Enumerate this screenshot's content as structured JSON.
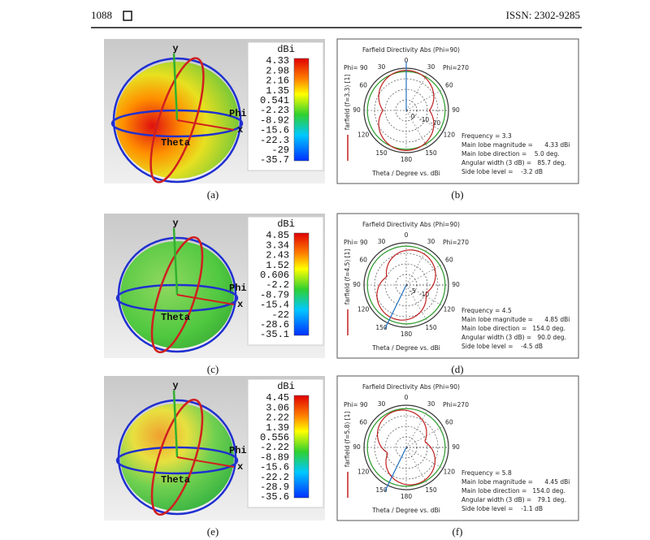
{
  "header": {
    "page": "1088",
    "issn": "ISSN: 2302-9285"
  },
  "rows": [
    {
      "pattern": {
        "axis_y": "y",
        "axis_phi": "Phi",
        "axis_x": "x",
        "axis_theta": "Theta",
        "unit": "dBi",
        "legend": [
          "4.33",
          "2.98",
          "2.16",
          "1.35",
          "0.541",
          "-2.23",
          "-8.92",
          "-15.6",
          "-22.3",
          "-29",
          "-35.7"
        ],
        "caption": "(a)"
      },
      "polar": {
        "title": "Farfield Directivity Abs (Phi=90)",
        "phi_left": "Phi= 90",
        "phi_right": "Phi=270",
        "angle_labels": [
          "0",
          "30",
          "30",
          "60",
          "60",
          "90",
          "90",
          "120",
          "120",
          "150",
          "150",
          "180"
        ],
        "radial_labels": [
          "0",
          "-10",
          "-20"
        ],
        "series_label": "farfield (f=3.3) [1]",
        "axis_label": "Theta / Degree vs. dBi",
        "info": [
          "Frequency = 3.3",
          "Main lobe magnitude =      4.33 dBi",
          "Main lobe direction =    5.0 deg.",
          "Angular width (3 dB) =   85.7 deg.",
          "Side lobe level =    -3.2 dB"
        ],
        "caption": "(b)"
      }
    },
    {
      "pattern": {
        "axis_y": "y",
        "axis_phi": "Phi",
        "axis_x": "x",
        "axis_theta": "Theta",
        "unit": "dBi",
        "legend": [
          "4.85",
          "3.34",
          "2.43",
          "1.52",
          "0.606",
          "-2.2",
          "-8.79",
          "-15.4",
          "-22",
          "-28.6",
          "-35.1"
        ],
        "caption": "(c)"
      },
      "polar": {
        "title": "Farfield Directivity Abs (Phi=90)",
        "phi_left": "Phi= 90",
        "phi_right": "Phi=270",
        "angle_labels": [
          "0",
          "30",
          "30",
          "60",
          "60",
          "90",
          "90",
          "120",
          "120",
          "150",
          "150",
          "180"
        ],
        "radial_labels": [
          "-5",
          "-10"
        ],
        "series_label": "farfield (f=4.5) [1]",
        "axis_label": "Theta / Degree vs. dBi",
        "info": [
          "Frequency = 4.5",
          "Main lobe magnitude =      4.85 dBi",
          "Main lobe direction =   154.0 deg.",
          "Angular width (3 dB) =   90.0 deg.",
          "Side lobe level =    -4.5 dB"
        ],
        "caption": "(d)"
      }
    },
    {
      "pattern": {
        "axis_y": "y",
        "axis_phi": "Phi",
        "axis_x": "x",
        "axis_theta": "Theta",
        "unit": "dBi",
        "legend": [
          "4.45",
          "3.06",
          "2.22",
          "1.39",
          "0.556",
          "-2.22",
          "-8.89",
          "-15.6",
          "-22.2",
          "-28.9",
          "-35.6"
        ],
        "caption": "(e)"
      },
      "polar": {
        "title": "Farfield Directivity Abs (Phi=90)",
        "phi_left": "Phi= 90",
        "phi_right": "Phi=270",
        "angle_labels": [
          "0",
          "30",
          "30",
          "60",
          "60",
          "90",
          "90",
          "120",
          "120",
          "150",
          "150",
          "180"
        ],
        "radial_labels": [],
        "series_label": "farfield (f=5.8) [1]",
        "axis_label": "Theta / Degree vs. dBi",
        "info": [
          "Frequency = 5.8",
          "Main lobe magnitude =      4.45 dBi",
          "Main lobe direction =   154.0 deg.",
          "Angular width (3 dB) =   79.1 deg.",
          "Side lobe level =    -1.1 dB"
        ],
        "caption": "(f)"
      }
    }
  ]
}
